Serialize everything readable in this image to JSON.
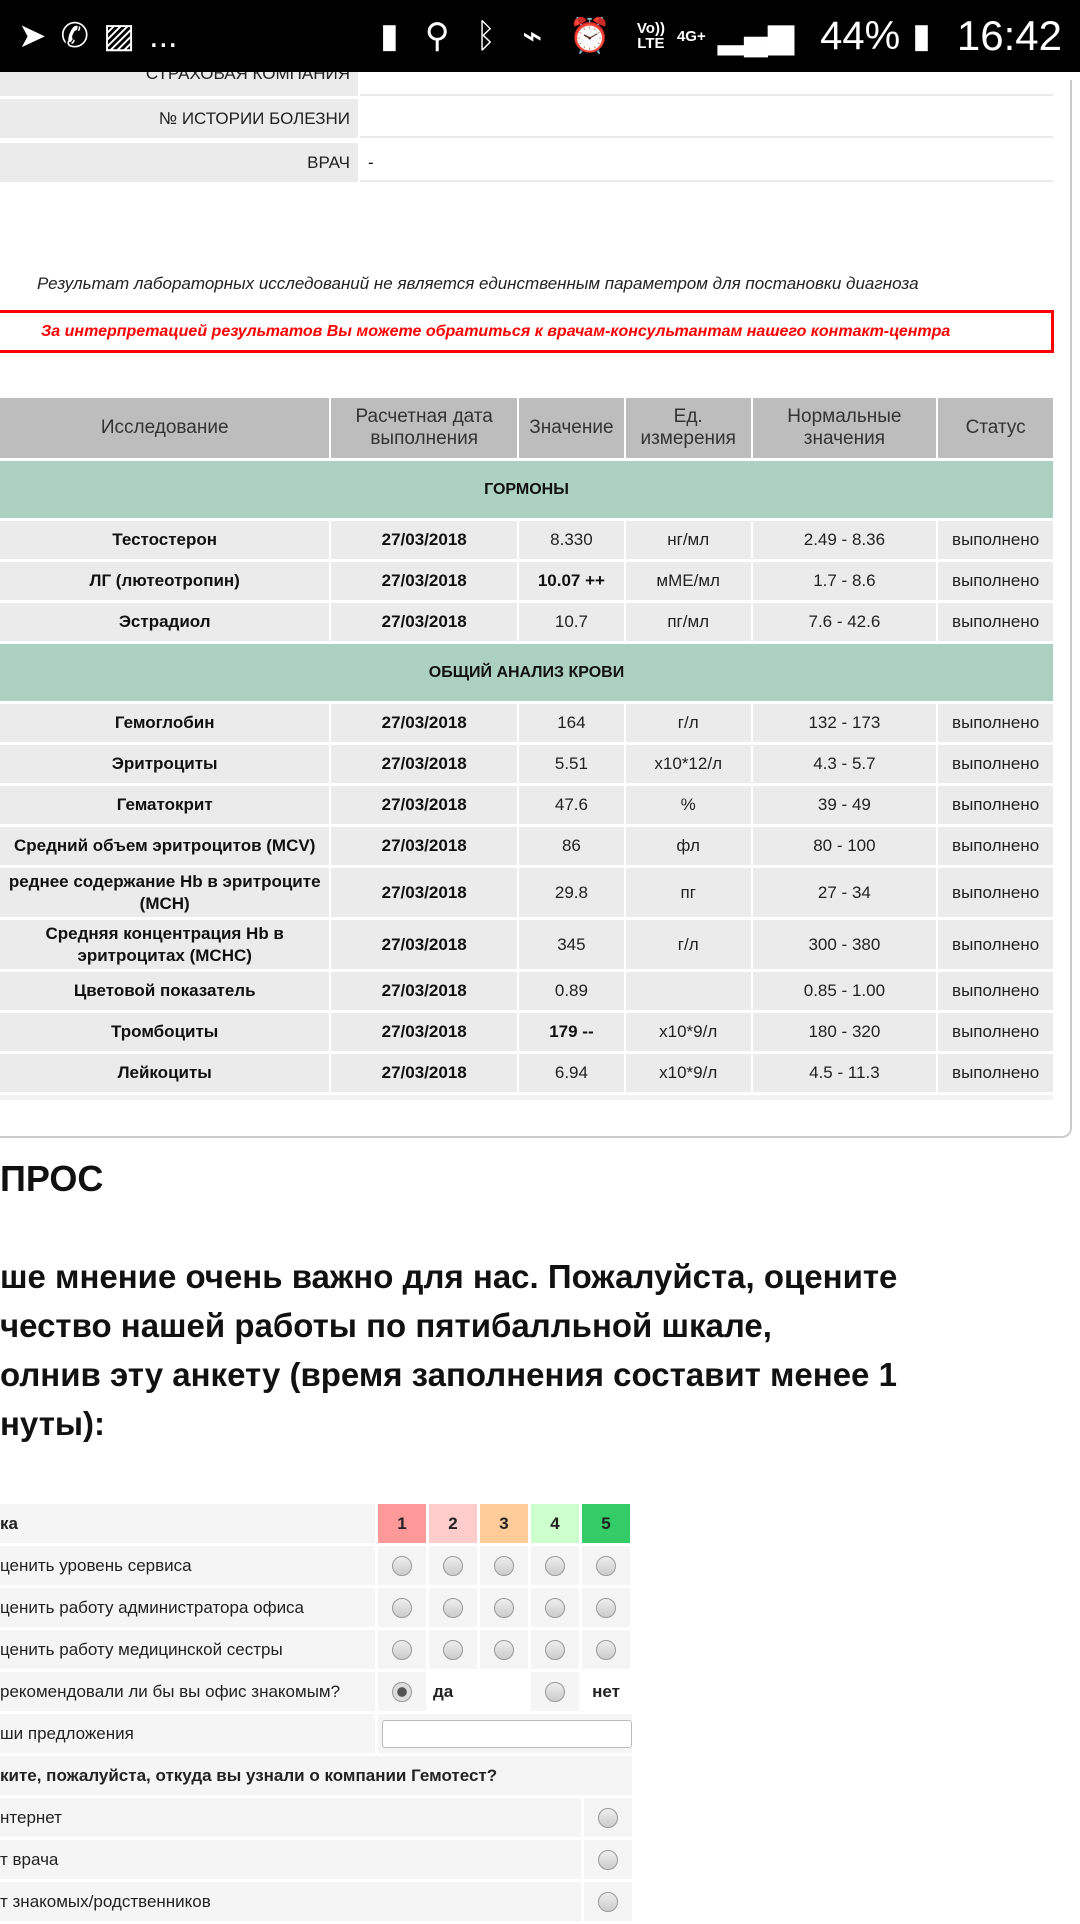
{
  "status_bar": {
    "left_icons": [
      "telegram-icon",
      "whatsapp-icon",
      "gallery-icon"
    ],
    "more": "...",
    "volte_top": "Vo))",
    "volte_bottom": "LTE",
    "network": "4G+",
    "battery": "44%",
    "time": "16:42"
  },
  "patient_info": [
    {
      "label": "СТРАХОВАЯ КОМПАНИЯ",
      "value": ""
    },
    {
      "label": "№ ИСТОРИИ БОЛЕЗНИ",
      "value": ""
    },
    {
      "label": "ВРАЧ",
      "value": "-"
    }
  ],
  "disclaimer": "Результат лабораторных исследований не является единственным параметром для постановки диагноза",
  "notice": "За интерпретацией результатов Вы можете обратиться к врачам-консультантам нашего контакт-центра",
  "notice_color": "#ff0000",
  "results": {
    "columns": [
      "Исследование",
      "Расчетная дата выполнения",
      "Значение",
      "Ед. измерения",
      "Нормальные значения",
      "Статус"
    ],
    "sections": [
      {
        "title": "ГОРМОНЫ",
        "rows": [
          {
            "test": "Тестостерон",
            "date": "27/03/2018",
            "value": "8.330",
            "unit": "нг/мл",
            "range": "2.49 - 8.36",
            "status": "выполнено",
            "flag": false
          },
          {
            "test": "ЛГ (лютеотропин)",
            "date": "27/03/2018",
            "value": "10.07 ++",
            "unit": "мМЕ/мл",
            "range": "1.7 - 8.6",
            "status": "выполнено",
            "flag": true
          },
          {
            "test": "Эстрадиол",
            "date": "27/03/2018",
            "value": "10.7",
            "unit": "пг/мл",
            "range": "7.6 - 42.6",
            "status": "выполнено",
            "flag": false
          }
        ]
      },
      {
        "title": "ОБЩИЙ АНАЛИЗ КРОВИ",
        "rows": [
          {
            "test": "Гемоглобин",
            "date": "27/03/2018",
            "value": "164",
            "unit": "г/л",
            "range": "132 - 173",
            "status": "выполнено",
            "flag": false
          },
          {
            "test": "Эритроциты",
            "date": "27/03/2018",
            "value": "5.51",
            "unit": "x10*12/л",
            "range": "4.3 - 5.7",
            "status": "выполнено",
            "flag": false
          },
          {
            "test": "Гематокрит",
            "date": "27/03/2018",
            "value": "47.6",
            "unit": "%",
            "range": "39 - 49",
            "status": "выполнено",
            "flag": false
          },
          {
            "test": "Средний объем эритроцитов (MCV)",
            "date": "27/03/2018",
            "value": "86",
            "unit": "фл",
            "range": "80 - 100",
            "status": "выполнено",
            "flag": false
          },
          {
            "test": "реднее содержание Hb в эритроците (MCH)",
            "date": "27/03/2018",
            "value": "29.8",
            "unit": "пг",
            "range": "27 - 34",
            "status": "выполнено",
            "flag": false,
            "tall": true
          },
          {
            "test": "Средняя концентрация Hb в эритроцитах (MCHC)",
            "date": "27/03/2018",
            "value": "345",
            "unit": "г/л",
            "range": "300 - 380",
            "status": "выполнено",
            "flag": false,
            "tall": true
          },
          {
            "test": "Цветовой показатель",
            "date": "27/03/2018",
            "value": "0.89",
            "unit": "",
            "range": "0.85 - 1.00",
            "status": "выполнено",
            "flag": false
          },
          {
            "test": "Тромбоциты",
            "date": "27/03/2018",
            "value": "179 --",
            "unit": "x10*9/л",
            "range": "180 - 320",
            "status": "выполнено",
            "flag": true
          },
          {
            "test": "Лейкоциты",
            "date": "27/03/2018",
            "value": "6.94",
            "unit": "x10*9/л",
            "range": "4.5 - 11.3",
            "status": "выполнено",
            "flag": false
          }
        ]
      }
    ]
  },
  "survey": {
    "title": "ПРОС",
    "intro": [
      "ше мнение очень важно для нас. Пожалуйста, оцените",
      "чество нашей работы по пятибалльной шкале,",
      "олнив эту анкету (время заполнения составит менее 1",
      "нуты):"
    ],
    "header_label": "ка",
    "scores": [
      {
        "label": "1",
        "color": "#ff9999"
      },
      {
        "label": "2",
        "color": "#ffcccc"
      },
      {
        "label": "3",
        "color": "#ffcc99"
      },
      {
        "label": "4",
        "color": "#ccffcc"
      },
      {
        "label": "5",
        "color": "#33cc66"
      }
    ],
    "ratings": [
      "ценить уровень сервиса",
      "ценить работу администратора офиса",
      "ценить работу медицинской сестры"
    ],
    "recommend": {
      "label": "рекомендовали ли бы вы офис знакомым?",
      "yes": "да",
      "no": "нет",
      "selected": "да"
    },
    "suggestions_label": "ши предложения",
    "suggestions_value": "",
    "source_question": "ките, пожалуйста, откуда вы узнали о компании Гемотест?",
    "sources": [
      "нтернет",
      "т врача",
      "т знакомых/родственников"
    ]
  }
}
